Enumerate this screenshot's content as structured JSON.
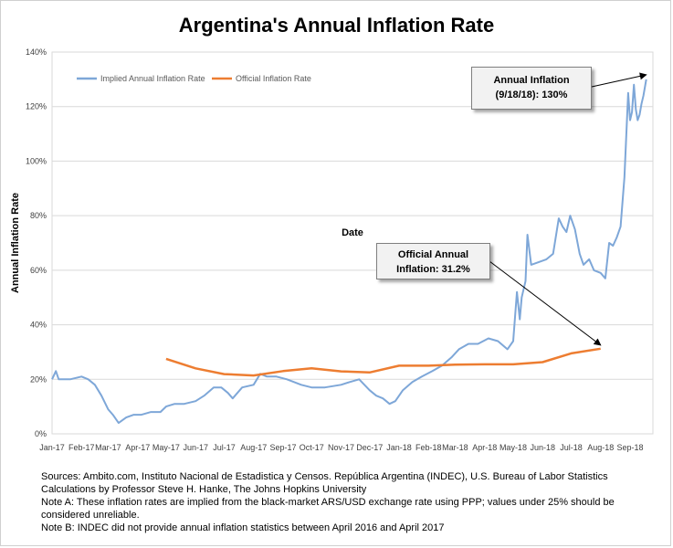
{
  "chart_data": {
    "type": "line",
    "title": "Argentina's Annual Inflation Rate",
    "xlabel": "Date",
    "ylabel": "Annual Inflation Rate",
    "ylim": [
      0,
      140
    ],
    "yticks": [
      "0%",
      "20%",
      "40%",
      "60%",
      "80%",
      "100%",
      "120%",
      "140%"
    ],
    "x_ticks": [
      "Jan-17",
      "Feb-17",
      "Mar-17",
      "Apr-17",
      "May-17",
      "Jun-17",
      "Jul-17",
      "Aug-17",
      "Sep-17",
      "Oct-17",
      "Nov-17",
      "Dec-17",
      "Jan-18",
      "Feb-18",
      "Mar-18",
      "Apr-18",
      "May-18",
      "Jun-18",
      "Jul-18",
      "Aug-18",
      "Sep-18"
    ],
    "grid": "horizontal",
    "legend": "top-left",
    "series": [
      {
        "name": "Implied Annual Inflation Rate",
        "color": "#7ea7d8",
        "x": [
          "2017-01-01",
          "2017-01-05",
          "2017-01-08",
          "2017-01-12",
          "2017-01-20",
          "2017-02-01",
          "2017-02-08",
          "2017-02-15",
          "2017-02-22",
          "2017-03-01",
          "2017-03-06",
          "2017-03-12",
          "2017-03-20",
          "2017-03-28",
          "2017-04-05",
          "2017-04-15",
          "2017-04-25",
          "2017-05-01",
          "2017-05-10",
          "2017-05-20",
          "2017-06-01",
          "2017-06-10",
          "2017-06-20",
          "2017-06-28",
          "2017-07-05",
          "2017-07-10",
          "2017-07-20",
          "2017-08-01",
          "2017-08-08",
          "2017-08-15",
          "2017-08-25",
          "2017-09-05",
          "2017-09-20",
          "2017-10-01",
          "2017-10-15",
          "2017-11-01",
          "2017-11-10",
          "2017-11-20",
          "2017-12-01",
          "2017-12-08",
          "2017-12-15",
          "2017-12-22",
          "2017-12-28",
          "2018-01-05",
          "2018-01-15",
          "2018-01-25",
          "2018-02-05",
          "2018-02-15",
          "2018-02-25",
          "2018-03-05",
          "2018-03-15",
          "2018-03-25",
          "2018-04-05",
          "2018-04-15",
          "2018-04-25",
          "2018-05-01",
          "2018-05-05",
          "2018-05-08",
          "2018-05-10",
          "2018-05-14",
          "2018-05-16",
          "2018-05-20",
          "2018-05-28",
          "2018-06-05",
          "2018-06-12",
          "2018-06-18",
          "2018-06-22",
          "2018-06-26",
          "2018-06-30",
          "2018-07-05",
          "2018-07-10",
          "2018-07-14",
          "2018-07-20",
          "2018-07-25",
          "2018-08-01",
          "2018-08-06",
          "2018-08-10",
          "2018-08-14",
          "2018-08-18",
          "2018-08-22",
          "2018-08-26",
          "2018-08-30",
          "2018-09-01",
          "2018-09-03",
          "2018-09-05",
          "2018-09-07",
          "2018-09-09",
          "2018-09-11",
          "2018-09-13",
          "2018-09-15",
          "2018-09-18"
        ],
        "values": [
          20,
          23,
          20,
          20,
          20,
          21,
          20,
          18,
          14,
          9,
          7,
          4,
          6,
          7,
          7,
          8,
          8,
          10,
          11,
          11,
          12,
          14,
          17,
          17,
          15,
          13,
          17,
          18,
          22,
          21,
          21,
          20,
          18,
          17,
          17,
          18,
          19,
          20,
          16,
          14,
          13,
          11,
          12,
          16,
          19,
          21,
          23,
          25,
          28,
          31,
          33,
          33,
          35,
          34,
          31,
          34,
          52,
          42,
          50,
          56,
          73,
          62,
          63,
          64,
          66,
          79,
          76,
          74,
          80,
          75,
          66,
          62,
          64,
          60,
          59,
          57,
          70,
          69,
          72,
          76,
          94,
          125,
          115,
          118,
          128,
          119,
          115,
          117,
          121,
          124,
          130
        ]
      },
      {
        "name": "Official Inflation Rate",
        "color": "#ed7d31",
        "x": [
          "2017-05-01",
          "2017-06-01",
          "2017-07-01",
          "2017-08-01",
          "2017-09-01",
          "2017-10-01",
          "2017-11-01",
          "2017-12-01",
          "2018-01-01",
          "2018-02-01",
          "2018-03-01",
          "2018-04-01",
          "2018-05-01",
          "2018-06-01",
          "2018-07-01",
          "2018-08-01"
        ],
        "values": [
          27.5,
          24.0,
          21.9,
          21.4,
          23.0,
          24.0,
          22.9,
          22.5,
          25.0,
          25.0,
          25.4,
          25.5,
          25.5,
          26.3,
          29.5,
          31.2
        ]
      }
    ],
    "annotations": [
      {
        "text_line1": "Annual Inflation",
        "text_line2": "(9/18/18): 130%"
      },
      {
        "text_line1": "Official Annual",
        "text_line2": "Inflation: 31.2%"
      }
    ]
  },
  "notes": [
    "Sources: Ambito.com, Instituto Nacional de Estadistica y Censos. República Argentina (INDEC), U.S. Bureau of Labor Statistics",
    "Calculations by Professor Steve H. Hanke, The Johns Hopkins University",
    "Note A: These inflation rates are implied from the black-market ARS/USD exchange rate using PPP; values under 25% should be considered unreliable.",
    "Note B: INDEC did not provide annual inflation statistics between April 2016 and April 2017"
  ]
}
